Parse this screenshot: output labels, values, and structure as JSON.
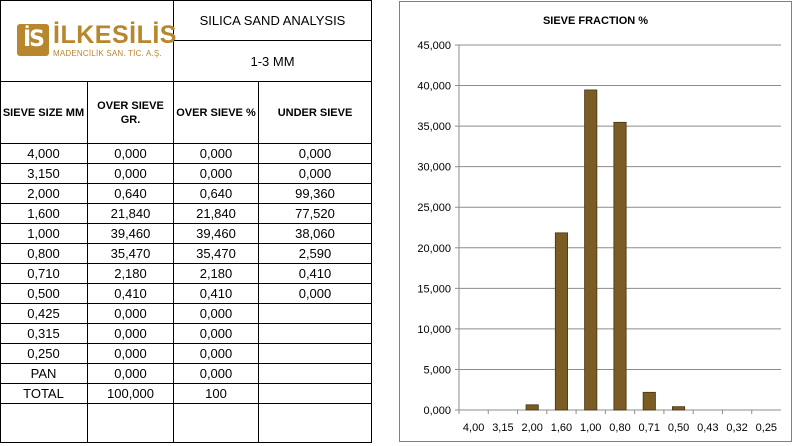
{
  "logo": {
    "mark": "İS",
    "word": "İLKESİLİS",
    "subtitle": "MADENCİLİK SAN. TİC. A.Ş."
  },
  "header": {
    "title": "SILICA SAND ANALYSIS",
    "size_range": "1-3 MM"
  },
  "columns": [
    "SIEVE SIZE MM",
    "OVER SIEVE GR.",
    "OVER SIEVE %",
    "UNDER SIEVE"
  ],
  "rows": [
    [
      "4,000",
      "0,000",
      "0,000",
      "0,000"
    ],
    [
      "3,150",
      "0,000",
      "0,000",
      "0,000"
    ],
    [
      "2,000",
      "0,640",
      "0,640",
      "99,360"
    ],
    [
      "1,600",
      "21,840",
      "21,840",
      "77,520"
    ],
    [
      "1,000",
      "39,460",
      "39,460",
      "38,060"
    ],
    [
      "0,800",
      "35,470",
      "35,470",
      "2,590"
    ],
    [
      "0,710",
      "2,180",
      "2,180",
      "0,410"
    ],
    [
      "0,500",
      "0,410",
      "0,410",
      "0,000"
    ],
    [
      "0,425",
      "0,000",
      "0,000",
      ""
    ],
    [
      "0,315",
      "0,000",
      "0,000",
      ""
    ],
    [
      "0,250",
      "0,000",
      "0,000",
      ""
    ],
    [
      "PAN",
      "0,000",
      "0,000",
      ""
    ],
    [
      "TOTAL",
      "100,000",
      "100",
      ""
    ],
    [
      "",
      "",
      "",
      ""
    ]
  ],
  "chart_data": {
    "type": "bar",
    "title": "SIEVE FRACTION %",
    "categories": [
      "4,00",
      "3,15",
      "2,00",
      "1,60",
      "1,00",
      "0,80",
      "0,71",
      "0,50",
      "0,43",
      "0,32",
      "0,25"
    ],
    "values": [
      0,
      0,
      0.64,
      21.84,
      39.46,
      35.47,
      2.18,
      0.41,
      0,
      0,
      0
    ],
    "yticks": [
      "0,000",
      "5,000",
      "10,000",
      "15,000",
      "20,000",
      "25,000",
      "30,000",
      "35,000",
      "40,000",
      "45,000"
    ],
    "ylim": [
      0,
      45
    ],
    "grid": true,
    "legend": "none",
    "bar_color": "#7a5c24",
    "bar_edge": "#4a3510"
  }
}
